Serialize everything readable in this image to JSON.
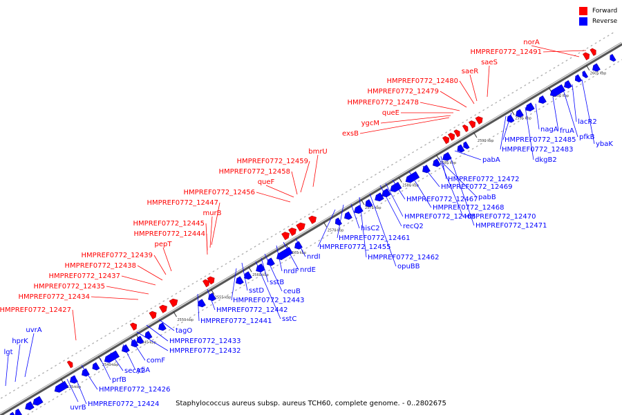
{
  "legend": {
    "forward_label": "Forward",
    "reverse_label": "Reverse",
    "forward_color": "#ff0000",
    "reverse_color": "#0000ff"
  },
  "caption": "Staphylococcus aureus subsp. aureus TCH60, complete genome. - 0..2802675",
  "ticks": [
    "2535 kbp",
    "2540 kbp",
    "2545 kbp",
    "2550 kbp",
    "2555 kbp",
    "2560 kbp",
    "2565 kbp",
    "2570 kbp",
    "2575 kbp",
    "2580 kbp",
    "2585 kbp",
    "2590 kbp",
    "2595 kbp",
    "2600 kbp",
    "2605 kbp"
  ],
  "forward_labels": [
    "HMPREF0772_12427",
    "HMPREF0772_12434",
    "HMPREF0772_12435",
    "HMPREF0772_12437",
    "HMPREF0772_12438",
    "HMPREF0772_12439",
    "pepT",
    "HMPREF0772_12444",
    "HMPREF0772_12445",
    "murB",
    "HMPREF0772_12447",
    "HMPREF0772_12456",
    "queF",
    "HMPREF0772_12458",
    "HMPREF0772_12459",
    "bmrU",
    "exsB",
    "ygcM",
    "queE",
    "HMPREF0772_12478",
    "HMPREF0772_12479",
    "HMPREF0772_12480",
    "saeR",
    "saeS",
    "HMPREF0772_12491",
    "norA"
  ],
  "reverse_labels": [
    "lgt",
    "hprK",
    "uvrA",
    "uvrB",
    "HMPREF0772_12424",
    "HMPREF0772_12426",
    "prfB",
    "secA2",
    "yfiA",
    "comF",
    "HMPREF0772_12432",
    "HMPREF0772_12433",
    "tagO",
    "HMPREF0772_12441",
    "HMPREF0772_12442",
    "HMPREF0772_12443",
    "sstD",
    "sstC",
    "sstB",
    "ceuB",
    "nrdF",
    "nrdE",
    "nrdI",
    "HMPREF0772_12455",
    "HMPREF0772_12461",
    "HMPREF0772_12462",
    "opuBB",
    "hisC2",
    "recQ2",
    "HMPREF0772_12465",
    "HMPREF0772_12467",
    "HMPREF0772_12468",
    "pabB",
    "HMPREF0772_12469",
    "HMPREF0772_12470",
    "HMPREF0772_12471",
    "HMPREF0772_12472",
    "pabA",
    "HMPREF0772_12483",
    "HMPREF0772_12485",
    "dkgB2",
    "nagA",
    "fruA",
    "pfkB",
    "lacR2",
    "ybaK"
  ]
}
